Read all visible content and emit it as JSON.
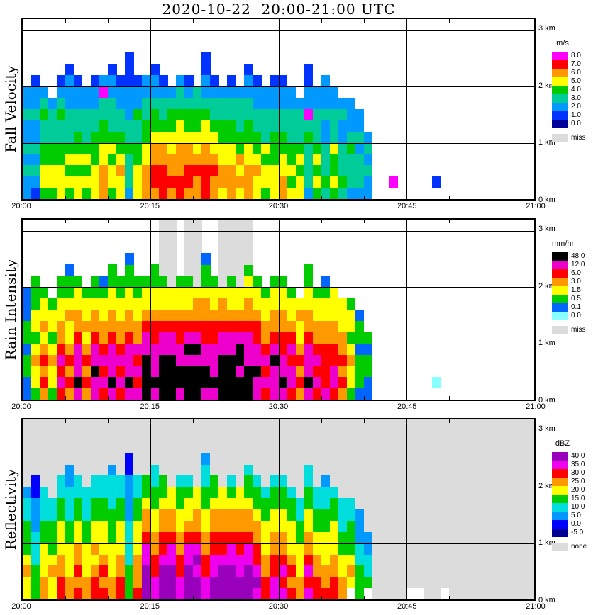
{
  "title": "2020-10-22  20:00-21:00 UTC",
  "chart_data": [
    {
      "type": "heatmap",
      "ylabel": "Fall Velocity",
      "unit": "m/s",
      "x": {
        "ticks": [
          "20:00",
          "20:15",
          "20:30",
          "20:45",
          "21:00"
        ],
        "minutes_span": 60
      },
      "y": {
        "ticks": [
          "0 km",
          "1 km",
          "2 km",
          "3 km"
        ],
        "range_km": [
          0,
          3.2
        ],
        "gridline_km": [
          1,
          2,
          3
        ]
      },
      "legend": {
        "labels": [
          "8.0",
          "7.0",
          "6.0",
          "5.0",
          "4.0",
          "3.0",
          "2.0",
          "1.0",
          "0.0"
        ],
        "missing_label": "miss"
      },
      "colors": [
        "#000099",
        "#0033FF",
        "#0099FF",
        "#00CC99",
        "#00CC00",
        "#FFFF00",
        "#FF9900",
        "#FF0000",
        "#FF00FF"
      ],
      "missing": {
        "label": "miss",
        "color": "#DCDCDC"
      },
      "background": "#FFFFFF",
      "cell_encoding": "columns = minutes 20:00 to 21:00; each string lists 15 cells bottom(0 km) to top(3 km), 0.2 km per cell; digit = index into colors (m/s bin lower bound 0-8), '.' = no echo, 'm' = missing",
      "columns": [
        "2232322322.....",
        "12323223221....",
        "4554433432.....",
        "455443332......",
        "55544334321....",
        "454543332221...",
        "55454433221....",
        "4545433322.....",
        "55544433221....",
        "66655443382....",
        "455454333221...",
        "55654433221....",
        "2333433222111..",
        "55544334221....",
        "66655443322....",
        "677665443221...",
        "77766543321....",
        "6766554432.....",
        "77666554332....",
        "67766544321....",
        "6676554433.....",
        "7776655432211..",
        "66765543321....",
        "5665544332.....",
        "66655443321....",
        "5656443332.....",
        "666554433221...",
        "55654433221....",
        "4554533322.....",
        "55544433221....",
        "66554433221....",
        "5454433322.....",
        "554543332......",
        "233334382211...",
        "4545433322.....",
        "34333223222....",
        "4544533322.....",
        "343332232......",
        "233343222......",
        "23332322.......",
        "223232.........",
        "...............",
        "...............",
        ".8.............",
        "...............",
        "...............",
        "...............",
        "...............",
        ".1.............",
        "...............",
        "...............",
        "...............",
        "...............",
        "...............",
        "...............",
        "...............",
        "...............",
        "...............",
        "...............",
        "..............."
      ]
    },
    {
      "type": "heatmap",
      "ylabel": "Rain Intensity",
      "unit": "mm/hr",
      "x": {
        "ticks": [
          "20:00",
          "20:15",
          "20:30",
          "20:45",
          "21:00"
        ],
        "minutes_span": 60
      },
      "y": {
        "ticks": [
          "0 km",
          "1 km",
          "2 km",
          "3 km"
        ],
        "range_km": [
          0,
          3.2
        ],
        "gridline_km": [
          1,
          2,
          3
        ]
      },
      "legend": {
        "labels": [
          "48.0",
          "12.0",
          "6.0",
          "3.0",
          "1.5",
          "0.5",
          "0.1",
          "0.0"
        ],
        "missing_label": "miss"
      },
      "colors": [
        "#88FFFF",
        "#0066FF",
        "#00CC00",
        "#FFFF00",
        "#FF9900",
        "#FF0000",
        "#EE00CC",
        "#000000"
      ],
      "missing": {
        "label": "miss",
        "color": "#DCDCDC"
      },
      "background": "#FFFFFF",
      "cell_encoding": "columns = minutes 20:00 to 21:00; each string lists 15 cells bottom(0 km) to top(3 km), 0.2 km per cell; digit = index into colors (mm/hr bin lower bound 0.0-48.0), '.' = no echo, 'm' = missing",
      "columns": [
        "1122122111.....",
        "23343233222....",
        "4545434332.....",
        "233432332......",
        "56565443322....",
        "454543343221...",
        "67666544332....",
        "4545434332.....",
        "66766544322....",
        "56565443321....",
        "676665443322...",
        "56565443322....",
        "6766654433221..",
        "65656443322....",
        "77776654332....",
        "676665543322...",
        "77776654332mmmm",
        "7777665433mmmmm",
        "67766554332....",
        "77767654332mmmm",
        "7776765443mmmmm",
        "6776655443221..",
        "67666554332....",
        "7777665443mmmmm",
        "77776654332mmmm",
        "7767765433mmmmm",
        "777666544332mmm",
        "66766554332....",
        "5656544332.....",
        "66676544332....",
        "67665544332....",
        "5665654332.....",
        "454543343......",
        "676665443322...",
        "5656544332.....",
        "65555443321....",
        "5665544333.....",
        "454544333......",
        "233432332......",
        "12221221.......",
        "112212.........",
        "...............",
        "...............",
        "...............",
        "...............",
        "...............",
        "...............",
        "...............",
        ".0.............",
        "...............",
        "...............",
        "...............",
        "...............",
        "...............",
        "...............",
        "...............",
        "...............",
        "...............",
        "...............",
        "..............."
      ]
    },
    {
      "type": "heatmap",
      "ylabel": "Reflectivity",
      "unit": "dBZ",
      "x": {
        "ticks": [
          "20:00",
          "20:15",
          "20:30",
          "20:45",
          "21:00"
        ],
        "minutes_span": 60
      },
      "y": {
        "ticks": [
          "0 km",
          "1 km",
          "2 km",
          "3 km"
        ],
        "range_km": [
          0,
          3.2
        ],
        "gridline_km": [
          1,
          2,
          3
        ]
      },
      "legend": {
        "labels": [
          "40.0",
          "35.0",
          "30.0",
          "25.0",
          "20.0",
          "15.0",
          "10.0",
          "5.0",
          "0.0",
          "-5.0"
        ],
        "missing_label": "none"
      },
      "colors": [
        "#000099",
        "#0000FF",
        "#0099FF",
        "#00DDDD",
        "#00CC00",
        "#FFFF00",
        "#FF9900",
        "#FF0000",
        "#EE00EE",
        "#9900BB"
      ],
      "missing": {
        "label": "none",
        "color": "#DCDCDC"
      },
      "background": "#DCDCDC",
      "cell_encoding": "columns = minutes 20:00 to 21:00; each string lists 15 cells bottom(0 km) to top(3 km), 0.2 km per cell; digit = index into colors (dBZ bin lower bound -5 to 40), 'm' = none (no measurement), 'w' = below threshold (white)",
      "columns": [
        "5565444332mmmmm",
        "44433322211mmmm",
        "6655544333mmmmm",
        "556544433mmmmmm",
        "77665554433mmmm",
        "665554433322mmm",
        "76766554433mmmm",
        "6655544333mmmmm",
        "77656554433mmmm",
        "76765554433mmmm",
        "665554443332mmm",
        "77665554433mmmm",
        "4443333222211mm",
        "76665554433mmmm",
        "99988766544mmmm",
        "887766554433mmm",
        "99987766544mmmm",
        "9998876655mmmmm",
        "88776655443mmmm",
        "99988765543mmmm",
        "9989876655mmmmm",
        "8877665544332mm",
        "99887766544mmmm",
        "9998776655mmmmm",
        "99988766543mmmm",
        "9988776655mmmmm",
        "999887665443mmm",
        "89877665443mmmm",
        "7766555443mmmmm",
        "88776655443mmmm",
        "87876655443mmmm",
        "7676555443mmmmm",
        "665554433mmmmmm",
        "878766554433mmm",
        "7766554433mmmmm",
        "76655544332mmmm",
        "7766555443mmmmm",
        "665544333mmmmmm",
        "w56544433mmmmmm",
        "44433222mmmmmmm",
        "w43322mmmmmmmmm",
        "mmmmmmmmmmmmmmm",
        "mmmmmmmmmmmmmmm",
        "mmmmmmmmmmmmmmm",
        "mmmmmmmmmmmmmmm",
        "wmmmmmmmmmmmmmm",
        "wmmmmmmmmmmmmmm",
        "mmmmmmmmmmmmmmm",
        "mmmmmmmmmmmmmmm",
        "wmmmmmmmmmmmmmm",
        "mmmmmmmmmmmmmmm",
        "mmmmmmmmmmmmmmm",
        "mmmmmmmmmmmmmmm",
        "mmmmmmmmmmmmmmm",
        "mmmmmmmmmmmmmmm",
        "mmmmmmmmmmmmmmm",
        "mmmmmmmmmmmmmmm",
        "mmmmmmmmmmmmmmm",
        "mmmmmmmmmmmmmmm",
        "mmmmmmmmmmmmmmm"
      ]
    }
  ]
}
